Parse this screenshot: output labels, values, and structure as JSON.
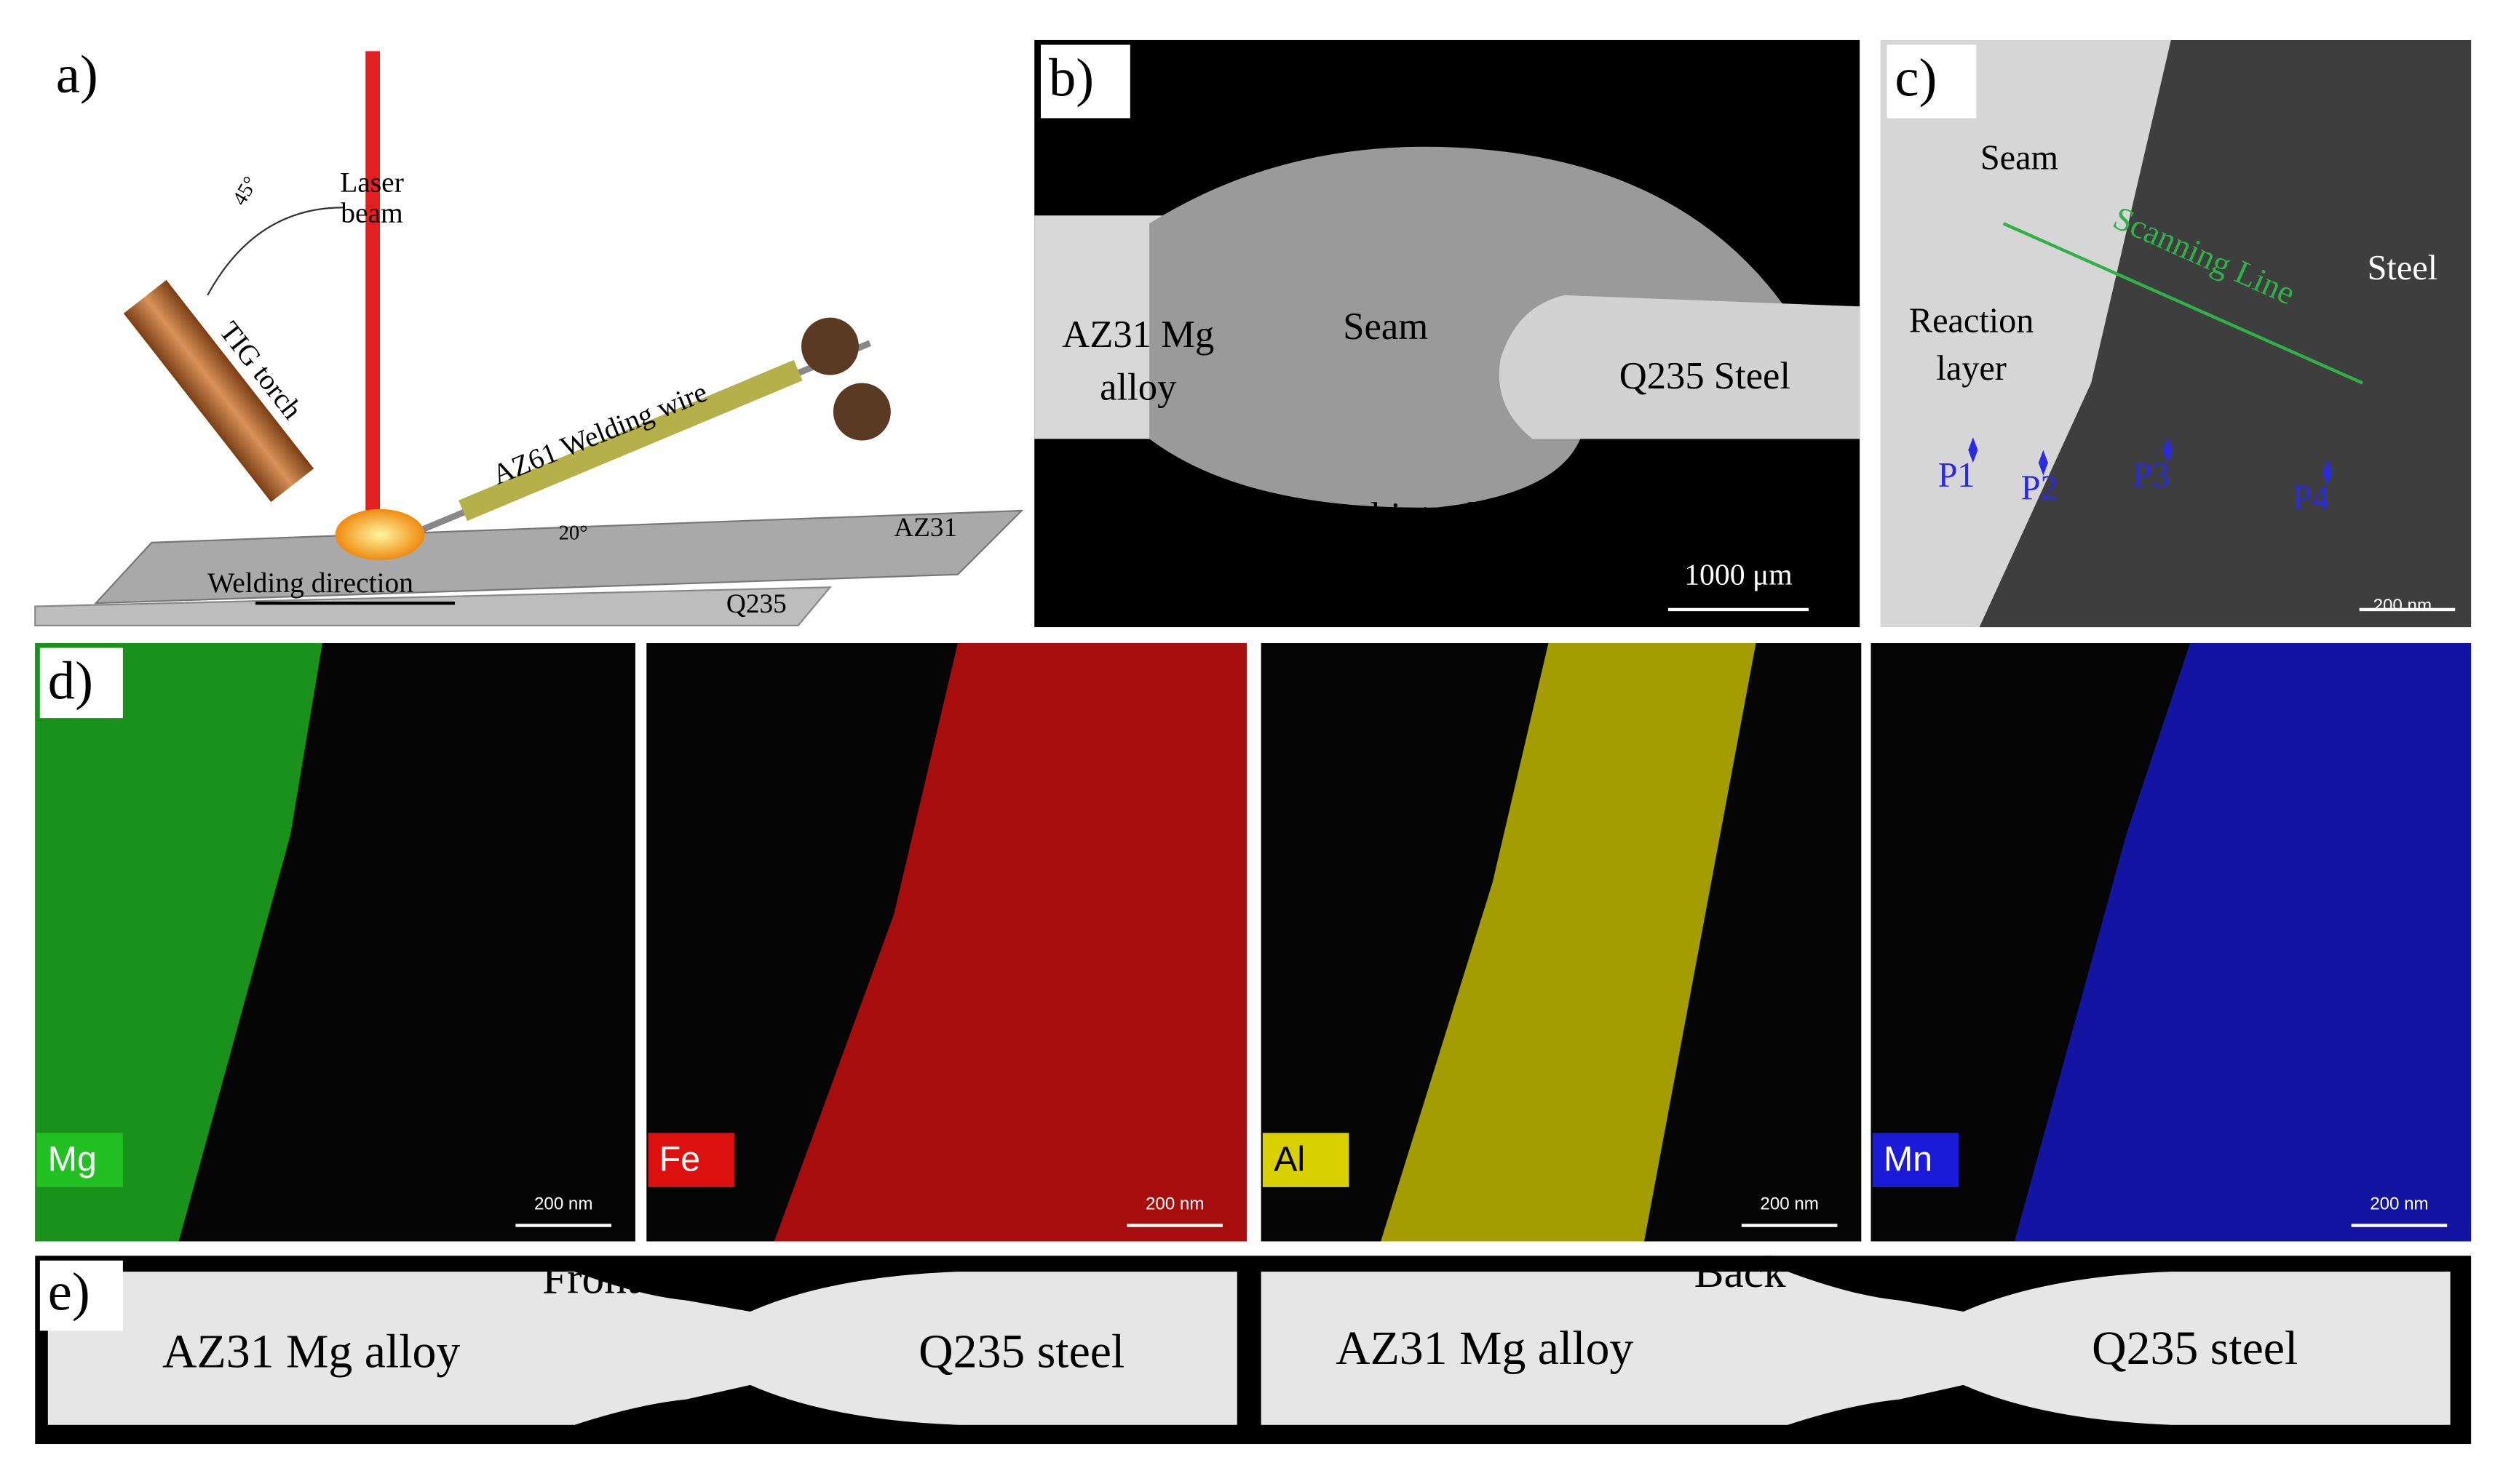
{
  "panel_a": {
    "label": "a)",
    "laser_beam": [
      "Laser",
      "beam"
    ],
    "torch_angle": "45°",
    "torch": "TIG torch",
    "wire": "AZ61 Welding wire",
    "wire_angle": "20°",
    "top_plate": "AZ31",
    "direction": "Welding direction",
    "bottom_plate": "Q235"
  },
  "panel_b": {
    "label": "b)",
    "left_metal": [
      "AZ31 Mg",
      "alloy"
    ],
    "seam": "Seam",
    "right_metal": "Q235 Steel",
    "interface": "Mg/steel interface",
    "scale_bar": "1000 μm"
  },
  "panel_c": {
    "label": "c)",
    "seam": "Seam",
    "scan": "Scanning Line",
    "steel": "Steel",
    "reaction_layer": [
      "Reaction",
      "layer"
    ],
    "points": [
      "P1",
      "P2",
      "P3",
      "P4"
    ],
    "scale_bar": "200 nm"
  },
  "panel_d": {
    "label": "d)",
    "maps": [
      {
        "element": "Mg",
        "scale_bar": "200 nm"
      },
      {
        "element": "Fe",
        "scale_bar": "200 nm"
      },
      {
        "element": "Al",
        "scale_bar": "200 nm"
      },
      {
        "element": "Mn",
        "scale_bar": "200 nm"
      }
    ]
  },
  "panel_e": {
    "label": "e)",
    "front": "Front",
    "back": "Back",
    "left_specimen": [
      "AZ31 Mg alloy",
      "AZ31 Mg alloy"
    ],
    "right_specimen": [
      "Q235 steel",
      "Q235 steel"
    ]
  }
}
